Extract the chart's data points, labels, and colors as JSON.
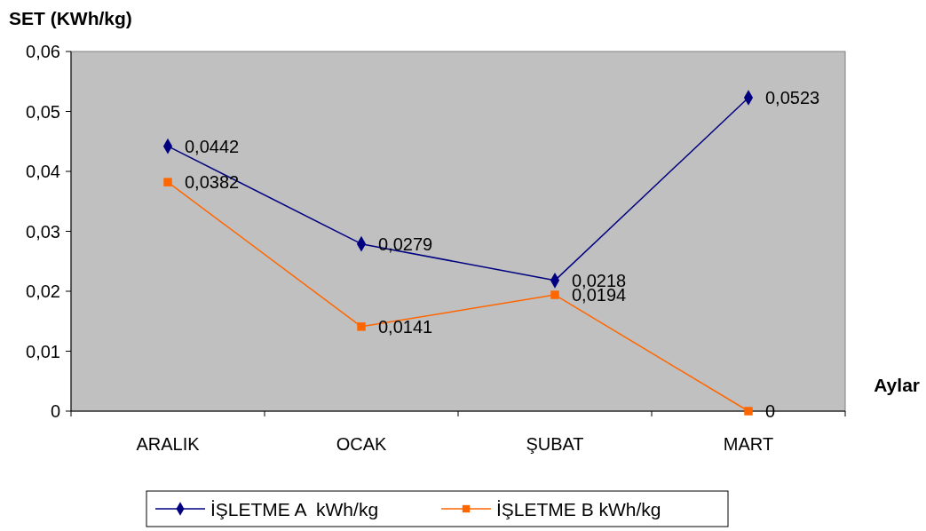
{
  "chart_data": {
    "type": "line",
    "ylabel": "SET (KWh/kg)",
    "xlabel": "Aylar",
    "categories": [
      "ARALIK",
      "OCAK",
      "ŞUBAT",
      "MART"
    ],
    "ylim": [
      0,
      0.06
    ],
    "yticks": [
      0,
      {
        "value": 0.01,
        "label": "0,01"
      },
      {
        "value": 0.02,
        "label": "0,02"
      },
      {
        "value": 0.03,
        "label": "0,03"
      },
      {
        "value": 0.04,
        "label": "0,04"
      },
      {
        "value": 0.05,
        "label": "0,05"
      },
      {
        "value": 0.06,
        "label": "0,06"
      }
    ],
    "legend": "bottom",
    "series": [
      {
        "name": "İŞLETME A  kWh/kg",
        "color": "#000080",
        "marker": "diamond",
        "values": [
          0.0442,
          0.0279,
          0.0218,
          0.0523
        ],
        "value_labels": [
          "0,0442",
          "0,0279",
          "0,0218",
          "0,0523"
        ]
      },
      {
        "name": "İŞLETME B kWh/kg",
        "color": "#ff6600",
        "marker": "square",
        "values": [
          0.0382,
          0.0141,
          0.0194,
          0
        ],
        "value_labels": [
          "0,0382",
          "0,0141",
          "0,0194",
          "0"
        ]
      }
    ]
  }
}
